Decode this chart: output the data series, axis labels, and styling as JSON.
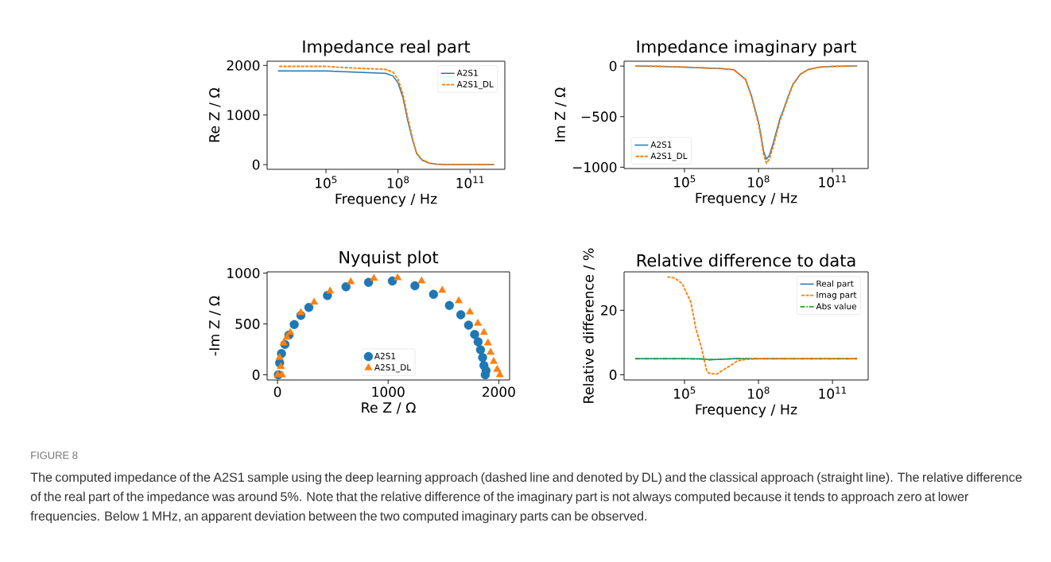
{
  "chart_data": [
    {
      "type": "line",
      "title": "Impedance real part",
      "xlabel": "Frequency / Hz",
      "ylabel": "Re Z / Ω",
      "log": "x",
      "legend": "top right",
      "xlim": [
        355,
        2800000000000.0
      ],
      "xticks": [
        {
          "value": 100000.0,
          "label": "10$^{5}$"
        },
        {
          "value": 100000000.0,
          "label": "10$^{8}$"
        },
        {
          "value": 100000000000.0,
          "label": "10$^{11}$"
        }
      ],
      "ylim": [
        -95,
        2085
      ],
      "yticks": [
        0,
        1000,
        2000
      ],
      "x": [
        1000.0,
        10000.0,
        100000.0,
        1000000.0,
        10000000.0,
        30000000.0,
        60000000.0,
        100000000.0,
        160000000.0,
        250000000.0,
        400000000.0,
        600000000.0,
        1000000000.0,
        2000000000.0,
        4000000000.0,
        10000000000.0,
        100000000000.0,
        1000000000000.0
      ],
      "series": [
        {
          "name": "A2S1",
          "color": "#1f77b4",
          "line_style": "solid",
          "values": [
            1890,
            1890,
            1890,
            1870,
            1850,
            1840,
            1790,
            1650,
            1350,
            900,
            500,
            220,
            90,
            30,
            10,
            0,
            0,
            0
          ]
        },
        {
          "name": "A2S1_DL",
          "color": "#ff7f0e",
          "line_style": "dashed",
          "values": [
            1980,
            1980,
            1980,
            1950,
            1930,
            1920,
            1870,
            1720,
            1420,
            960,
            530,
            230,
            100,
            30,
            10,
            0,
            0,
            0
          ]
        }
      ]
    },
    {
      "type": "line",
      "title": "Impedance imaginary part",
      "xlabel": "Frequency / Hz",
      "ylabel": "Im Z / Ω",
      "log": "x",
      "legend": "bottom left",
      "xlim": [
        355,
        2800000000000.0
      ],
      "xticks": [
        {
          "value": 100000.0,
          "label": "10$^{5}$"
        },
        {
          "value": 100000000.0,
          "label": "10$^{8}$"
        },
        {
          "value": 100000000000.0,
          "label": "10$^{11}$"
        }
      ],
      "ylim": [
        -1013,
        48
      ],
      "yticks": [
        {
          "value": 0,
          "label": "0"
        },
        {
          "value": -500,
          "label": "−500"
        },
        {
          "value": -1000,
          "label": "−1000"
        }
      ],
      "x": [
        1000.0,
        10000.0,
        100000.0,
        1000000.0,
        3000000.0,
        10000000.0,
        30000000.0,
        50000000.0,
        100000000.0,
        130000000.0,
        160000000.0,
        210000000.0,
        280000000.0,
        400000000.0,
        740000000.0,
        1000000000.0,
        1600000000.0,
        2500000000.0,
        5000000000.0,
        10000000000.0,
        30000000000.0,
        100000000000.0,
        1000000000000.0
      ],
      "series": [
        {
          "name": "A2S1",
          "color": "#1f77b4",
          "line_style": "solid",
          "values": [
            0,
            -3,
            -10,
            -20,
            -25,
            -36,
            -132,
            -280,
            -550,
            -700,
            -840,
            -920,
            -880,
            -760,
            -520,
            -440,
            -300,
            -180,
            -80,
            -35,
            -10,
            -3,
            0
          ]
        },
        {
          "name": "A2S1_DL",
          "color": "#ff7f0e",
          "line_style": "dashed",
          "values": [
            0,
            -3,
            -10,
            -20,
            -25,
            -36,
            -135,
            -290,
            -570,
            -725,
            -870,
            -962,
            -915,
            -790,
            -540,
            -455,
            -310,
            -185,
            -82,
            -36,
            -10,
            -3,
            0
          ]
        }
      ]
    },
    {
      "type": "scatter",
      "title": "Nyquist plot",
      "xlabel": "Re Z / Ω",
      "ylabel": "-Im Z / Ω",
      "legend": "bottom",
      "xlim": [
        -94,
        2098
      ],
      "xticks": [
        0,
        1000,
        2000
      ],
      "ylim": [
        -51,
        1012
      ],
      "yticks": [
        0,
        500,
        1000
      ],
      "series": [
        {
          "name": "A2S1",
          "color": "#1f77b4",
          "marker": "circle",
          "x": [
            7,
            19,
            36,
            67,
            103,
            151,
            211,
            283,
            451,
            619,
            823,
            1038,
            1242,
            1410,
            1554,
            1657,
            1727,
            1782,
            1813,
            1835,
            1854,
            1866,
            1885,
            1878
          ],
          "values": [
            0,
            117,
            208,
            299,
            390,
            494,
            584,
            662,
            779,
            865,
            909,
            922,
            875,
            792,
            681,
            590,
            488,
            397,
            325,
            247,
            169,
            91,
            40,
            0
          ]
        },
        {
          "name": "A2S1_DL",
          "color": "#ff7f0e",
          "marker": "triangle",
          "x": [
            2,
            40,
            30,
            19,
            55,
            85,
            115,
            211,
            331,
            475,
            662,
            871,
            1086,
            1302,
            1489,
            1638,
            1739,
            1811,
            1866,
            1902,
            1926,
            1954,
            1986,
            2010
          ],
          "values": [
            0,
            0,
            80,
            169,
            312,
            370,
            416,
            610,
            714,
            823,
            914,
            948,
            953,
            922,
            831,
            727,
            618,
            506,
            416,
            312,
            221,
            130,
            52,
            0
          ]
        }
      ]
    },
    {
      "type": "line",
      "title": "Relative difference to data",
      "xlabel": "Frequency / Hz",
      "ylabel": "Relative difference / %",
      "log": "x",
      "legend": "top right",
      "xlim": [
        355,
        2800000000000.0
      ],
      "xticks": [
        {
          "value": 100000.0,
          "label": "10$^{5}$"
        },
        {
          "value": 100000000.0,
          "label": "10$^{8}$"
        },
        {
          "value": 100000000000.0,
          "label": "10$^{11}$"
        }
      ],
      "ylim": [
        -1.6,
        31.9
      ],
      "yticks": [
        0,
        20
      ],
      "series": [
        {
          "name": "Real part",
          "color": "#1f77b4",
          "line_style": "solid",
          "x": [
            1000.0,
            10000.0,
            100000.0,
            500000.0,
            1000000.0,
            3000000.0,
            10000000.0,
            100000000.0,
            10000000000.0,
            1000000000000.0
          ],
          "values": [
            5,
            5,
            5,
            4.9,
            4.7,
            4.8,
            5,
            5,
            5,
            5
          ]
        },
        {
          "name": "Imag part",
          "color": "#ff7f0e",
          "line_style": "dashed",
          "x": [
            18000.0,
            40000.0,
            80000.0,
            180000.0,
            290000.0,
            480000.0,
            800000.0,
            1000000.0,
            2000000.0,
            3200000.0,
            7000000.0,
            14000000.0,
            32000000.0,
            100000000.0,
            1000000000.0,
            10000000000.0,
            100000000000.0,
            1000000000000.0
          ],
          "values": [
            30.4,
            30,
            28.3,
            22.5,
            14.3,
            8.6,
            1.2,
            0.5,
            0.2,
            1.2,
            2.8,
            4.3,
            4.8,
            5,
            5,
            5,
            5,
            5
          ]
        },
        {
          "name": "Abs value",
          "color": "#2ca02c",
          "line_style": "dashdot",
          "x": [
            1000.0,
            10000.0,
            100000.0,
            500000.0,
            1000000.0,
            3000000.0,
            10000000.0,
            100000000.0,
            10000000000.0,
            1000000000000.0
          ],
          "values": [
            5,
            5,
            5,
            4.9,
            4.7,
            4.8,
            5,
            5,
            5,
            5
          ]
        }
      ],
      "annotations": [
        "FIGURE 8",
        "The computed impedance of the A2S1 sample using the deep learning approach (dashed line and denoted by DL) and the classical approach (straight line). The relative difference of the real part of the impedance was around 5%. Note that the relative difference of the imaginary part is not always computed because it tends to approach zero at lower frequencies. Below 1 MHz, an apparent deviation between the two computed imaginary parts can be observed."
      ]
    }
  ]
}
